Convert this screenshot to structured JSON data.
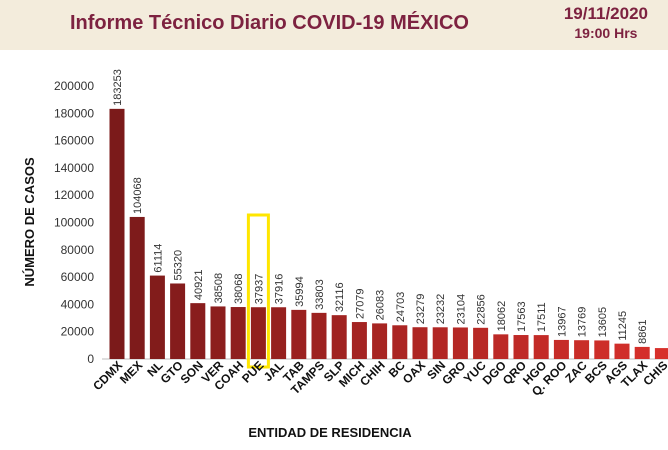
{
  "header": {
    "title": "Informe Técnico Diario COVID-19 MÉXICO",
    "date": "19/11/2020",
    "time": "19:00 Hrs"
  },
  "colors": {
    "header_bg": "#f3ecdc",
    "title": "#7d2240",
    "bar_dark": "#7b1a1a",
    "bar_light": "#d7302b",
    "highlight": "#ffe600"
  },
  "chart_data": {
    "type": "bar",
    "xlabel": "ENTIDAD DE RESIDENCIA",
    "ylabel": "NÚMERO DE CASOS",
    "ylim": [
      0,
      200000
    ],
    "yticks": [
      0,
      20000,
      40000,
      60000,
      80000,
      100000,
      120000,
      140000,
      160000,
      180000,
      200000
    ],
    "highlighted_category": "PUE",
    "categories": [
      "CDMX",
      "MEX",
      "NL",
      "GTO",
      "SON",
      "VER",
      "COAH",
      "PUE",
      "JAL",
      "TAB",
      "TAMPS",
      "SLP",
      "MICH",
      "CHIH",
      "BC",
      "OAX",
      "SIN",
      "GRO",
      "YUC",
      "DGO",
      "QRO",
      "HGO",
      "Q. ROO",
      "ZAC",
      "BCS",
      "AGS",
      "TLAX",
      "CHIS"
    ],
    "values": [
      183253,
      104068,
      61114,
      55320,
      40921,
      38508,
      38068,
      37937,
      37916,
      35994,
      33803,
      32116,
      27079,
      26083,
      24703,
      23279,
      23232,
      23104,
      22856,
      18062,
      17563,
      17511,
      13967,
      13769,
      13605,
      11245,
      8861,
      8000
    ],
    "labels": [
      "183253",
      "104068",
      "61114",
      "55320",
      "40921",
      "38508",
      "38068",
      "37937",
      "37916",
      "35994",
      "33803",
      "32116",
      "27079",
      "26083",
      "24703",
      "23279",
      "23232",
      "23104",
      "22856",
      "18062",
      "17563",
      "17511",
      "13967",
      "13769",
      "13605",
      "11245",
      "8861",
      ""
    ],
    "grid": false,
    "legend": "none"
  }
}
